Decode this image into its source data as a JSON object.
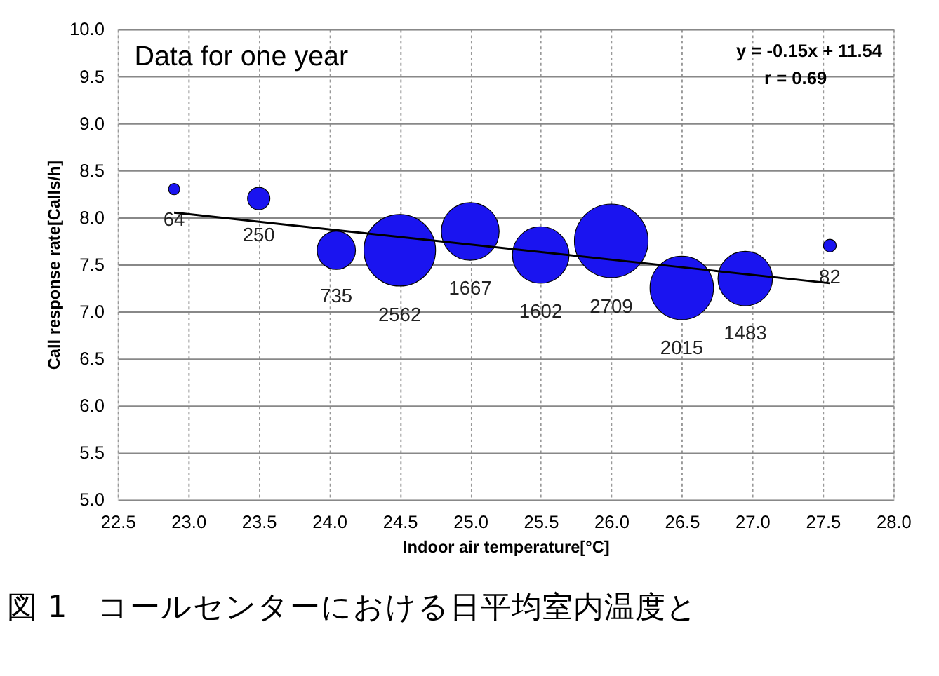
{
  "chart_data": {
    "type": "bubble",
    "xlabel": "Indoor air temperature[°C]",
    "ylabel": "Call response rate[Calls/h]",
    "xlim": [
      22.5,
      28.0
    ],
    "xticks": [
      {
        "value": 22.5,
        "label": "22.5"
      },
      {
        "value": 23,
        "label": "23.0"
      },
      {
        "value": 23.5,
        "label": "23.5"
      },
      {
        "value": 24,
        "label": "24.0"
      },
      {
        "value": 24.5,
        "label": "24.5"
      },
      {
        "value": 25,
        "label": "25.0"
      },
      {
        "value": 25.5,
        "label": "25.5"
      },
      {
        "value": 26,
        "label": "26.0"
      },
      {
        "value": 26.5,
        "label": "26.5"
      },
      {
        "value": 27,
        "label": "27.0"
      },
      {
        "value": 27.5,
        "label": "27.5"
      },
      {
        "value": 28,
        "label": "28.0"
      }
    ],
    "ylim": [
      5.0,
      10.0
    ],
    "yticks": [
      {
        "value": 5,
        "label": "5.0"
      },
      {
        "value": 5.5,
        "label": "5.5"
      },
      {
        "value": 6,
        "label": "6.0"
      },
      {
        "value": 6.5,
        "label": "6.5"
      },
      {
        "value": 7,
        "label": "7.0"
      },
      {
        "value": 7.5,
        "label": "7.5"
      },
      {
        "value": 8,
        "label": "8.0"
      },
      {
        "value": 8.5,
        "label": "8.5"
      },
      {
        "value": 9,
        "label": "9.0"
      },
      {
        "value": 9.5,
        "label": "9.5"
      },
      {
        "value": 10,
        "label": "10.0"
      }
    ],
    "grid": true,
    "series": [
      {
        "type": "bubble",
        "color": "#1a14f0",
        "x": [
          22.9,
          23.5,
          24.05,
          24.5,
          25.0,
          25.5,
          26.0,
          26.5,
          26.95,
          27.55
        ],
        "values": [
          8.3,
          8.2,
          7.65,
          7.65,
          7.85,
          7.6,
          7.75,
          7.25,
          7.35,
          7.7
        ],
        "sizes": [
          64,
          250,
          735,
          2562,
          1667,
          1602,
          2709,
          2015,
          1483,
          82
        ],
        "value_labels": [
          "64",
          "250",
          "735",
          "2562",
          "1667",
          "1602",
          "2709",
          "2015",
          "1483",
          "82"
        ]
      },
      {
        "type": "line",
        "color": "#000000",
        "x": [
          22.9,
          27.55
        ],
        "values": [
          8.05,
          7.3
        ]
      }
    ],
    "annotations": [
      "Data for one year",
      "y = -0.15x + 11.54",
      "r = 0.69",
      "図 1　コールセンターにおける日平均室内温度と"
    ]
  }
}
